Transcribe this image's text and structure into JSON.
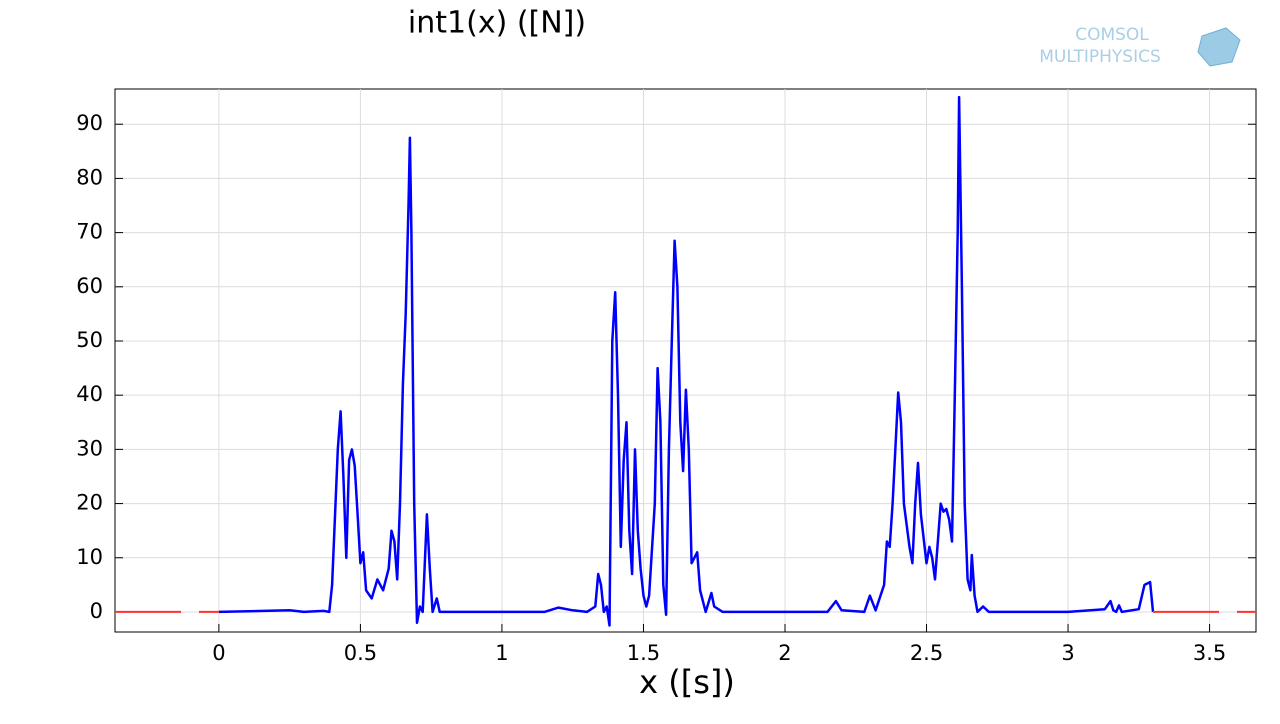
{
  "chart_data": {
    "type": "line",
    "title": "int1(x) ([N])",
    "x_label": "x ([s])",
    "logo": {
      "line1": "COMSOL",
      "line2": "MULTIPHYSICS"
    },
    "xlim": [
      -0.367,
      3.664
    ],
    "ylim": [
      -3.7,
      96.5
    ],
    "xticks": [
      0,
      0.5,
      1,
      1.5,
      2,
      2.5,
      3,
      3.5
    ],
    "yticks": [
      0,
      10,
      20,
      30,
      40,
      50,
      60,
      70,
      80,
      90
    ],
    "grid": true,
    "series": [
      {
        "color": "#0000ff",
        "dash": false,
        "x": [
          0,
          0.25,
          0.3,
          0.37,
          0.39,
          0.4,
          0.42,
          0.43,
          0.44,
          0.45,
          0.46,
          0.47,
          0.48,
          0.49,
          0.5,
          0.51,
          0.52,
          0.54,
          0.56,
          0.58,
          0.6,
          0.61,
          0.62,
          0.63,
          0.64,
          0.65,
          0.66,
          0.67,
          0.675,
          0.68,
          0.69,
          0.7,
          0.71,
          0.72,
          0.735,
          0.745,
          0.755,
          0.77,
          0.78,
          0.8,
          1.0,
          1.15,
          1.2,
          1.25,
          1.3,
          1.33,
          1.34,
          1.35,
          1.36,
          1.37,
          1.38,
          1.39,
          1.4,
          1.41,
          1.42,
          1.43,
          1.44,
          1.45,
          1.46,
          1.47,
          1.48,
          1.49,
          1.5,
          1.51,
          1.52,
          1.54,
          1.55,
          1.56,
          1.57,
          1.58,
          1.59,
          1.6,
          1.61,
          1.62,
          1.63,
          1.64,
          1.65,
          1.66,
          1.67,
          1.69,
          1.7,
          1.72,
          1.74,
          1.75,
          1.78,
          2.15,
          2.18,
          2.2,
          2.28,
          2.3,
          2.32,
          2.35,
          2.36,
          2.37,
          2.38,
          2.4,
          2.41,
          2.42,
          2.44,
          2.45,
          2.46,
          2.47,
          2.48,
          2.5,
          2.51,
          2.52,
          2.53,
          2.55,
          2.56,
          2.57,
          2.58,
          2.59,
          2.6,
          2.61,
          2.615,
          2.625,
          2.635,
          2.645,
          2.655,
          2.66,
          2.67,
          2.68,
          2.7,
          2.72,
          3.0,
          3.13,
          3.15,
          3.16,
          3.17,
          3.18,
          3.19,
          3.25,
          3.27,
          3.29,
          3.3
        ],
        "values": [
          0,
          0.3,
          0,
          0.2,
          0,
          5,
          30,
          37,
          25,
          10,
          28,
          30,
          27,
          18,
          9,
          11,
          4,
          2.5,
          6,
          4,
          8,
          15,
          13,
          6,
          20,
          42,
          55,
          75,
          87.5,
          70,
          20,
          -2,
          1,
          0,
          18,
          8,
          0,
          2.5,
          0,
          0,
          0,
          0,
          0.8,
          0.3,
          0,
          1,
          7,
          5,
          0,
          1,
          -2.5,
          50,
          59,
          40,
          12,
          28,
          35,
          15,
          7,
          30,
          15,
          8,
          3,
          1,
          3,
          20,
          45,
          35,
          5,
          -0.5,
          30,
          50,
          68.5,
          60,
          35,
          26,
          41,
          30,
          9,
          11,
          4,
          0,
          3.5,
          1,
          0,
          0,
          2,
          0.3,
          0,
          3,
          0.3,
          5,
          13,
          12,
          20,
          40.5,
          35,
          20,
          12,
          9,
          20,
          27.5,
          18,
          9,
          12,
          10,
          6,
          20,
          18.5,
          19,
          17,
          13,
          40,
          70,
          95,
          60,
          20,
          6,
          4,
          10.5,
          3,
          0,
          1,
          0,
          0,
          0.5,
          2,
          0.3,
          0,
          1.2,
          0,
          0.5,
          5,
          5.5,
          0
        ]
      },
      {
        "color": "#ff3030",
        "dash": true,
        "x": [
          -0.367,
          0,
          null,
          3.3,
          3.664
        ],
        "values": [
          0,
          0,
          null,
          0,
          0
        ]
      }
    ]
  }
}
